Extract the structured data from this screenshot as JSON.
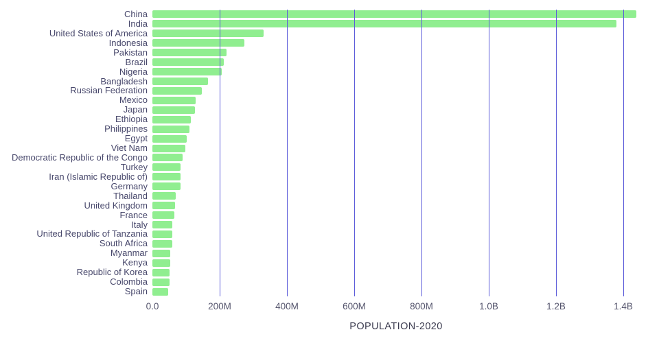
{
  "chart_data": {
    "type": "bar",
    "orientation": "horizontal",
    "title": "",
    "xlabel": "POPULATION-2020",
    "ylabel": "",
    "unit": "millions of people",
    "xlim_millions": [
      0,
      1450
    ],
    "grid": true,
    "x_ticks": [
      {
        "value": 0,
        "label": "0.0"
      },
      {
        "value": 200,
        "label": "200M"
      },
      {
        "value": 400,
        "label": "400M"
      },
      {
        "value": 600,
        "label": "600M"
      },
      {
        "value": 800,
        "label": "800M"
      },
      {
        "value": 1000,
        "label": "1.0B"
      },
      {
        "value": 1200,
        "label": "1.2B"
      },
      {
        "value": 1400,
        "label": "1.4B"
      }
    ],
    "categories": [
      "China",
      "India",
      "United States of America",
      "Indonesia",
      "Pakistan",
      "Brazil",
      "Nigeria",
      "Bangladesh",
      "Russian Federation",
      "Mexico",
      "Japan",
      "Ethiopia",
      "Philippines",
      "Egypt",
      "Viet Nam",
      "Democratic Republic of the Congo",
      "Turkey",
      "Iran (Islamic Republic of)",
      "Germany",
      "Thailand",
      "United Kingdom",
      "France",
      "Italy",
      "United Republic of Tanzania",
      "South Africa",
      "Myanmar",
      "Kenya",
      "Republic of Korea",
      "Colombia",
      "Spain"
    ],
    "values": [
      1439,
      1380,
      331,
      273,
      221,
      213,
      206,
      165,
      146,
      129,
      126,
      115,
      110,
      102,
      97,
      90,
      84,
      84,
      84,
      70,
      68,
      65,
      60,
      60,
      59,
      54,
      54,
      51,
      51,
      47
    ],
    "colors": {
      "bar": "#90ee90",
      "grid": "#5b5bd9",
      "label": "#47476b",
      "tick": "#55556d",
      "axis_title": "#3b3b4f"
    }
  }
}
